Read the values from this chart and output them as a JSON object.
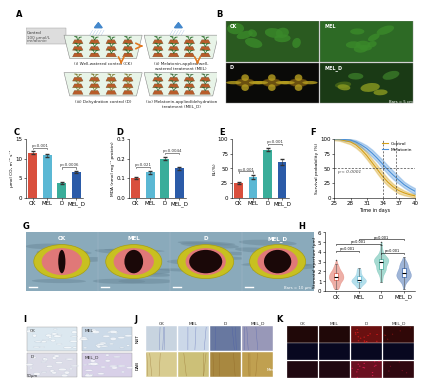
{
  "panel_labels": [
    "A",
    "B",
    "C",
    "D",
    "E",
    "F",
    "G",
    "H",
    "I",
    "J",
    "K"
  ],
  "categories": [
    "CK",
    "MEL",
    "D",
    "MEL_D"
  ],
  "bar_colors": [
    "#d94f3d",
    "#5bb8d4",
    "#3aad9a",
    "#2b5ba8"
  ],
  "C_values": [
    11.5,
    10.8,
    3.8,
    6.5
  ],
  "C_ylabel": "μmol CO₂ m⁻² s⁻¹",
  "C_ylim": [
    0,
    15
  ],
  "C_yticks": [
    0,
    5,
    10,
    15
  ],
  "C_errors": [
    0.3,
    0.4,
    0.2,
    0.3
  ],
  "D_values": [
    0.1,
    0.13,
    0.2,
    0.15
  ],
  "D_ylabel": "MDA (nmol mg⁻¹ protein)",
  "D_ylim": [
    0,
    0.3
  ],
  "D_yticks": [
    0.0,
    0.1,
    0.2,
    0.3
  ],
  "D_errors": [
    0.005,
    0.008,
    0.01,
    0.007
  ],
  "E_values": [
    25,
    35,
    82,
    60
  ],
  "E_ylabel": "EL(%)",
  "E_ylim": [
    0,
    100
  ],
  "E_yticks": [
    0,
    25,
    50,
    75,
    100
  ],
  "E_errors": [
    2,
    3,
    3,
    5
  ],
  "F_control_x": [
    25,
    26,
    27,
    28,
    29,
    30,
    31,
    32,
    33,
    34,
    35,
    36,
    37,
    38,
    39,
    40
  ],
  "F_control_y": [
    100,
    99,
    97,
    95,
    90,
    82,
    72,
    60,
    48,
    36,
    26,
    18,
    12,
    8,
    5,
    3
  ],
  "F_melatonin_y": [
    100,
    100,
    99,
    98,
    95,
    90,
    84,
    76,
    67,
    57,
    47,
    38,
    30,
    22,
    16,
    11
  ],
  "F_xlabel": "Time in days",
  "F_ylabel": "Survival probability (%)",
  "F_ylim": [
    0,
    100
  ],
  "F_xlim": [
    25,
    40
  ],
  "F_control_color": "#d4a017",
  "F_melatonin_color": "#4a90d9",
  "H_ylabel": "Stomatal aperture (μm)",
  "H_violin_colors": [
    "#d94f3d",
    "#5bb8d4",
    "#3aad9a",
    "#2b5ba8"
  ],
  "background_color": "#ffffff",
  "panel_label_fontsize": 6,
  "tick_fontsize": 4
}
